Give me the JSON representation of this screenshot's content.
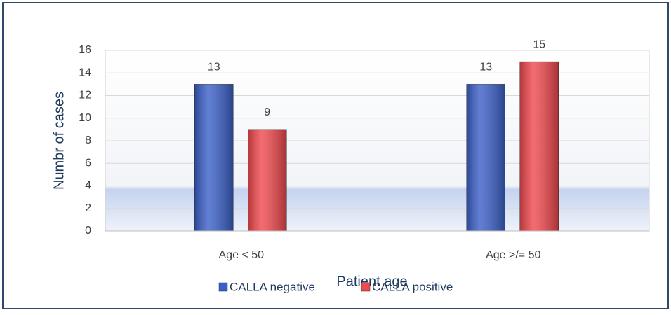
{
  "chart_data": {
    "type": "bar",
    "y_label": "Numbr of cases",
    "x_label": "Patient age",
    "categories": [
      "Age < 50",
      "Age >/= 50"
    ],
    "series": [
      {
        "name": "CALLA negative",
        "color": "#3a5fc8",
        "values": [
          13,
          13
        ]
      },
      {
        "name": "CALLA positive",
        "color": "#f0484c",
        "values": [
          9,
          15
        ]
      }
    ],
    "ylim": [
      0,
      16
    ],
    "yticks": [
      0,
      2,
      4,
      6,
      8,
      10,
      12,
      14,
      16
    ],
    "grid": true,
    "legend": "bottom"
  }
}
